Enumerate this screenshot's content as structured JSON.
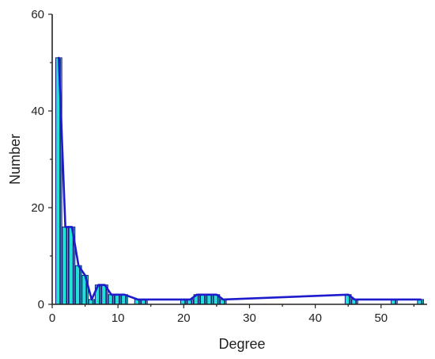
{
  "chart_data": {
    "type": "bar",
    "xlabel": "Degree",
    "ylabel": "Number",
    "xlim": [
      0,
      57
    ],
    "ylim": [
      0,
      60
    ],
    "x_ticks": [
      0,
      10,
      20,
      30,
      40,
      50
    ],
    "y_ticks": [
      0,
      20,
      40,
      60
    ],
    "grid": false,
    "series": [
      {
        "x": [
          1,
          2,
          3,
          4,
          5,
          6,
          7,
          8,
          9,
          10,
          11,
          13,
          14,
          20,
          21,
          22,
          23,
          24,
          25,
          26,
          45,
          46,
          52,
          56
        ],
        "values": [
          51,
          16,
          16,
          8,
          6,
          1,
          4,
          4,
          2,
          2,
          2,
          1,
          1,
          1,
          1,
          2,
          2,
          2,
          2,
          1,
          2,
          1,
          1,
          1
        ]
      }
    ],
    "line_x": [
      1,
      2,
      3,
      4,
      5,
      6,
      7,
      8,
      9,
      10,
      11,
      13,
      14,
      20,
      21,
      22,
      23,
      24,
      25,
      26,
      45,
      46,
      52,
      56
    ],
    "line_values": [
      51,
      16,
      16,
      8,
      6,
      1,
      4,
      4,
      2,
      2,
      2,
      1,
      1,
      1,
      1,
      2,
      2,
      2,
      2,
      1,
      2,
      1,
      1,
      1
    ],
    "colors": {
      "bar_fill": "#22e0d8",
      "bar_stroke": "#1a1a6e",
      "line": "#1c1ccc",
      "axis": "#222222"
    }
  }
}
